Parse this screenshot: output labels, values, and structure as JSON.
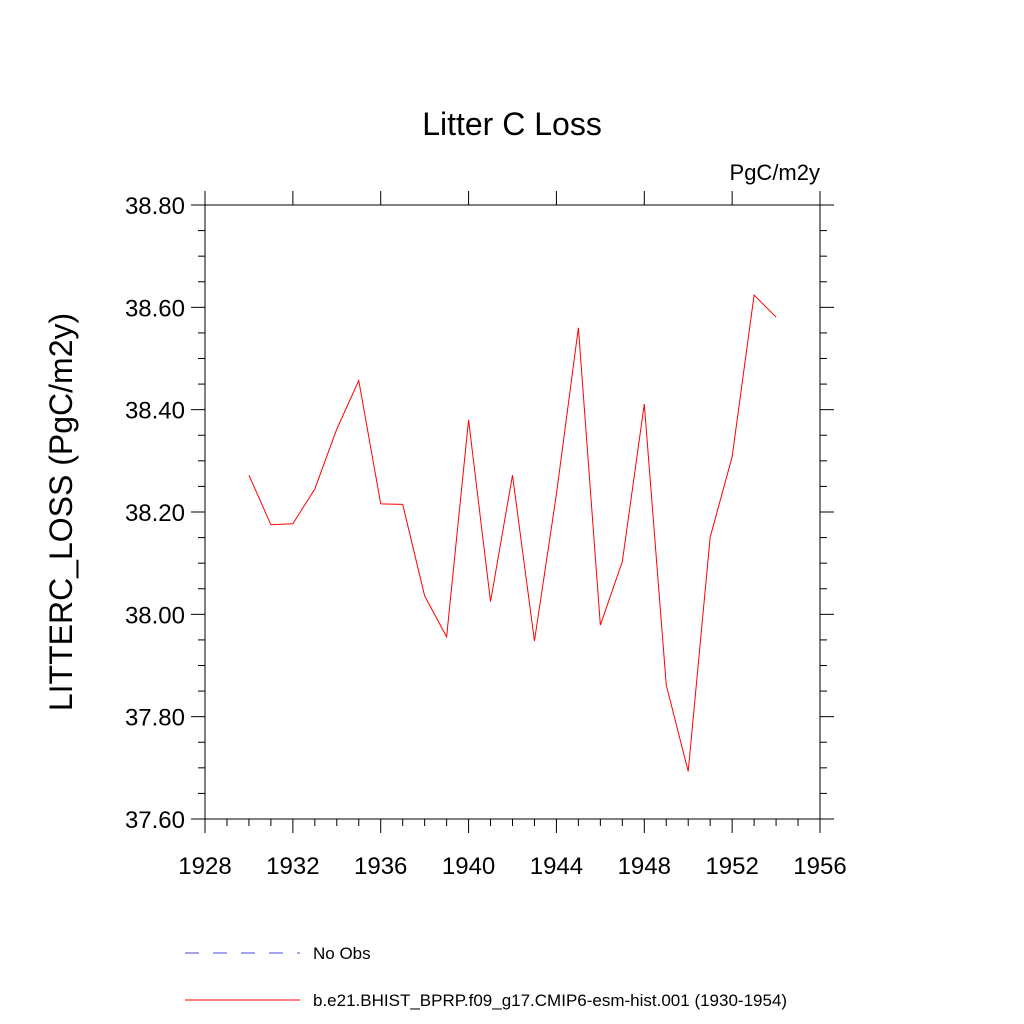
{
  "chart_data": {
    "type": "line",
    "title": "Litter C Loss",
    "units_label": "PgC/m2y",
    "ylabel": "LITTERC_LOSS  (PgC/m2y)",
    "xlabel": "",
    "xlim": [
      1928,
      1956
    ],
    "ylim": [
      37.6,
      38.8
    ],
    "x_ticks": [
      1928,
      1932,
      1936,
      1940,
      1944,
      1948,
      1952,
      1956
    ],
    "x_tick_labels": [
      "1928",
      "1932",
      "1936",
      "1940",
      "1944",
      "1948",
      "1952",
      "1956"
    ],
    "y_ticks": [
      37.6,
      37.8,
      38.0,
      38.2,
      38.4,
      38.6,
      38.8
    ],
    "y_tick_labels": [
      "37.60",
      "37.80",
      "38.00",
      "38.20",
      "38.40",
      "38.60",
      "38.80"
    ],
    "grid": false,
    "legend_position": "bottom",
    "series": [
      {
        "name": "b.e21.BHIST_BPRP.f09_g17.CMIP6-esm-hist.001 (1930-1954)",
        "color": "#ff0000",
        "style": "solid",
        "x": [
          1930,
          1931,
          1932,
          1933,
          1934,
          1935,
          1936,
          1937,
          1938,
          1939,
          1940,
          1941,
          1942,
          1943,
          1944,
          1945,
          1946,
          1947,
          1948,
          1949,
          1950,
          1951,
          1952,
          1953,
          1954
        ],
        "y": [
          38.272,
          38.175,
          38.177,
          38.245,
          38.362,
          38.457,
          38.216,
          38.215,
          38.036,
          37.956,
          38.38,
          38.025,
          38.272,
          37.948,
          38.235,
          38.56,
          37.979,
          38.103,
          38.411,
          37.862,
          37.693,
          38.151,
          38.308,
          38.624,
          38.581
        ]
      }
    ],
    "legend": [
      {
        "label": "No Obs",
        "color": "#4a4ad8",
        "style": "dashed"
      },
      {
        "label": "b.e21.BHIST_BPRP.f09_g17.CMIP6-esm-hist.001 (1930-1954)",
        "color": "#ff0000",
        "style": "solid"
      }
    ]
  }
}
